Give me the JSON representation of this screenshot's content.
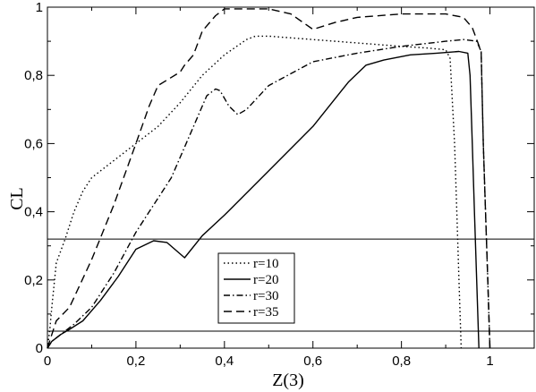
{
  "chart_data": {
    "type": "line",
    "xlabel": "Z(3)",
    "ylabel": "CL",
    "xlim": [
      0,
      1.1
    ],
    "ylim": [
      0,
      1
    ],
    "x_ticks": [
      "0",
      "0,2",
      "0,4",
      "0,6",
      "0,8",
      "1"
    ],
    "y_ticks": [
      "0",
      "0,2",
      "0,4",
      "0,6",
      "0,8",
      "1"
    ],
    "legend_position": "center-bottom",
    "reference_lines": [
      0.32,
      0.05
    ],
    "series": [
      {
        "name": "r=10",
        "style": "dotted",
        "points": [
          [
            0,
            0
          ],
          [
            0.005,
            0.05
          ],
          [
            0.01,
            0.12
          ],
          [
            0.02,
            0.25
          ],
          [
            0.04,
            0.32
          ],
          [
            0.06,
            0.4
          ],
          [
            0.08,
            0.46
          ],
          [
            0.1,
            0.5
          ],
          [
            0.15,
            0.55
          ],
          [
            0.2,
            0.6
          ],
          [
            0.25,
            0.65
          ],
          [
            0.3,
            0.72
          ],
          [
            0.35,
            0.8
          ],
          [
            0.4,
            0.86
          ],
          [
            0.45,
            0.905
          ],
          [
            0.47,
            0.915
          ],
          [
            0.5,
            0.915
          ],
          [
            0.6,
            0.905
          ],
          [
            0.7,
            0.895
          ],
          [
            0.8,
            0.885
          ],
          [
            0.86,
            0.88
          ],
          [
            0.9,
            0.875
          ],
          [
            0.91,
            0.85
          ],
          [
            0.92,
            0.6
          ],
          [
            0.925,
            0.4
          ],
          [
            0.93,
            0.2
          ],
          [
            0.935,
            0
          ]
        ]
      },
      {
        "name": "r=20",
        "style": "solid",
        "points": [
          [
            0,
            0
          ],
          [
            0.01,
            0.02
          ],
          [
            0.03,
            0.04
          ],
          [
            0.05,
            0.055
          ],
          [
            0.08,
            0.08
          ],
          [
            0.12,
            0.14
          ],
          [
            0.16,
            0.21
          ],
          [
            0.2,
            0.29
          ],
          [
            0.24,
            0.315
          ],
          [
            0.27,
            0.31
          ],
          [
            0.31,
            0.265
          ],
          [
            0.35,
            0.33
          ],
          [
            0.4,
            0.39
          ],
          [
            0.5,
            0.52
          ],
          [
            0.6,
            0.65
          ],
          [
            0.68,
            0.78
          ],
          [
            0.72,
            0.83
          ],
          [
            0.76,
            0.845
          ],
          [
            0.82,
            0.86
          ],
          [
            0.88,
            0.865
          ],
          [
            0.93,
            0.87
          ],
          [
            0.95,
            0.865
          ],
          [
            0.955,
            0.8
          ],
          [
            0.96,
            0.6
          ],
          [
            0.965,
            0.4
          ],
          [
            0.97,
            0.2
          ],
          [
            0.975,
            0
          ]
        ]
      },
      {
        "name": "r=30",
        "style": "dash-dot",
        "points": [
          [
            0,
            0
          ],
          [
            0.01,
            0.02
          ],
          [
            0.03,
            0.04
          ],
          [
            0.06,
            0.07
          ],
          [
            0.1,
            0.12
          ],
          [
            0.15,
            0.22
          ],
          [
            0.2,
            0.34
          ],
          [
            0.25,
            0.44
          ],
          [
            0.28,
            0.5
          ],
          [
            0.32,
            0.62
          ],
          [
            0.36,
            0.74
          ],
          [
            0.38,
            0.76
          ],
          [
            0.39,
            0.755
          ],
          [
            0.41,
            0.71
          ],
          [
            0.43,
            0.685
          ],
          [
            0.45,
            0.7
          ],
          [
            0.5,
            0.77
          ],
          [
            0.6,
            0.84
          ],
          [
            0.7,
            0.865
          ],
          [
            0.8,
            0.885
          ],
          [
            0.9,
            0.9
          ],
          [
            0.94,
            0.905
          ],
          [
            0.97,
            0.9
          ],
          [
            0.98,
            0.87
          ],
          [
            0.985,
            0.6
          ],
          [
            0.99,
            0.4
          ],
          [
            0.995,
            0.2
          ],
          [
            1.0,
            0
          ]
        ]
      },
      {
        "name": "r=35",
        "style": "dashed",
        "points": [
          [
            0,
            0
          ],
          [
            0.01,
            0.04
          ],
          [
            0.02,
            0.08
          ],
          [
            0.05,
            0.12
          ],
          [
            0.1,
            0.26
          ],
          [
            0.15,
            0.42
          ],
          [
            0.2,
            0.6
          ],
          [
            0.23,
            0.71
          ],
          [
            0.25,
            0.77
          ],
          [
            0.3,
            0.81
          ],
          [
            0.31,
            0.83
          ],
          [
            0.33,
            0.86
          ],
          [
            0.35,
            0.93
          ],
          [
            0.38,
            0.975
          ],
          [
            0.4,
            0.995
          ],
          [
            0.5,
            0.995
          ],
          [
            0.55,
            0.98
          ],
          [
            0.6,
            0.935
          ],
          [
            0.65,
            0.955
          ],
          [
            0.7,
            0.97
          ],
          [
            0.8,
            0.98
          ],
          [
            0.9,
            0.98
          ],
          [
            0.94,
            0.97
          ],
          [
            0.96,
            0.94
          ],
          [
            0.98,
            0.87
          ],
          [
            0.985,
            0.6
          ],
          [
            0.99,
            0.4
          ],
          [
            0.995,
            0.2
          ],
          [
            1.0,
            0
          ]
        ]
      }
    ]
  }
}
